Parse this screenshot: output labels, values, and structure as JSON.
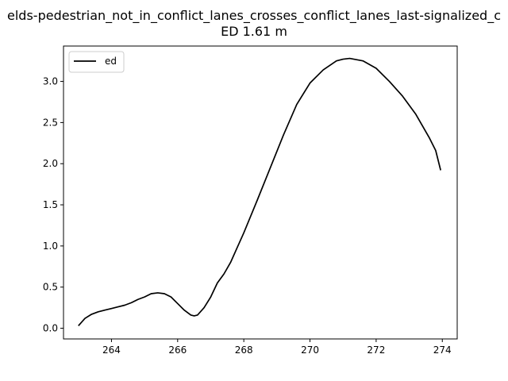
{
  "chart_data": {
    "type": "line",
    "title_line1": "elds-pedestrian_not_in_conflict_lanes_crosses_conflict_lanes_last-signalized_c",
    "title_line2": "ED 1.61 m",
    "xlabel": "",
    "ylabel": "",
    "xlim": [
      262.55,
      274.45
    ],
    "ylim": [
      -0.13,
      3.43
    ],
    "xticks": [
      264,
      266,
      268,
      270,
      272,
      274
    ],
    "yticks": [
      0.0,
      0.5,
      1.0,
      1.5,
      2.0,
      2.5,
      3.0
    ],
    "xtick_labels": [
      "264",
      "266",
      "268",
      "270",
      "272",
      "274"
    ],
    "ytick_labels": [
      "0.0",
      "0.5",
      "1.0",
      "1.5",
      "2.0",
      "2.5",
      "3.0"
    ],
    "grid": false,
    "legend_position": "top-left",
    "line_color": "#000000",
    "series": [
      {
        "name": "ed",
        "x": [
          263.0,
          263.2,
          263.4,
          263.6,
          263.8,
          264.0,
          264.2,
          264.4,
          264.6,
          264.8,
          265.0,
          265.2,
          265.4,
          265.6,
          265.8,
          266.0,
          266.2,
          266.4,
          266.5,
          266.6,
          266.8,
          267.0,
          267.2,
          267.4,
          267.6,
          267.8,
          268.0,
          268.4,
          268.8,
          269.2,
          269.6,
          270.0,
          270.4,
          270.8,
          271.0,
          271.2,
          271.6,
          272.0,
          272.4,
          272.8,
          273.2,
          273.6,
          273.8,
          273.95
        ],
        "y": [
          0.03,
          0.12,
          0.17,
          0.2,
          0.22,
          0.24,
          0.26,
          0.28,
          0.31,
          0.35,
          0.38,
          0.42,
          0.43,
          0.42,
          0.38,
          0.3,
          0.22,
          0.16,
          0.15,
          0.16,
          0.25,
          0.38,
          0.55,
          0.66,
          0.8,
          0.98,
          1.16,
          1.55,
          1.95,
          2.35,
          2.72,
          2.98,
          3.14,
          3.25,
          3.27,
          3.28,
          3.25,
          3.16,
          3.0,
          2.82,
          2.6,
          2.32,
          2.16,
          1.92
        ]
      }
    ]
  }
}
